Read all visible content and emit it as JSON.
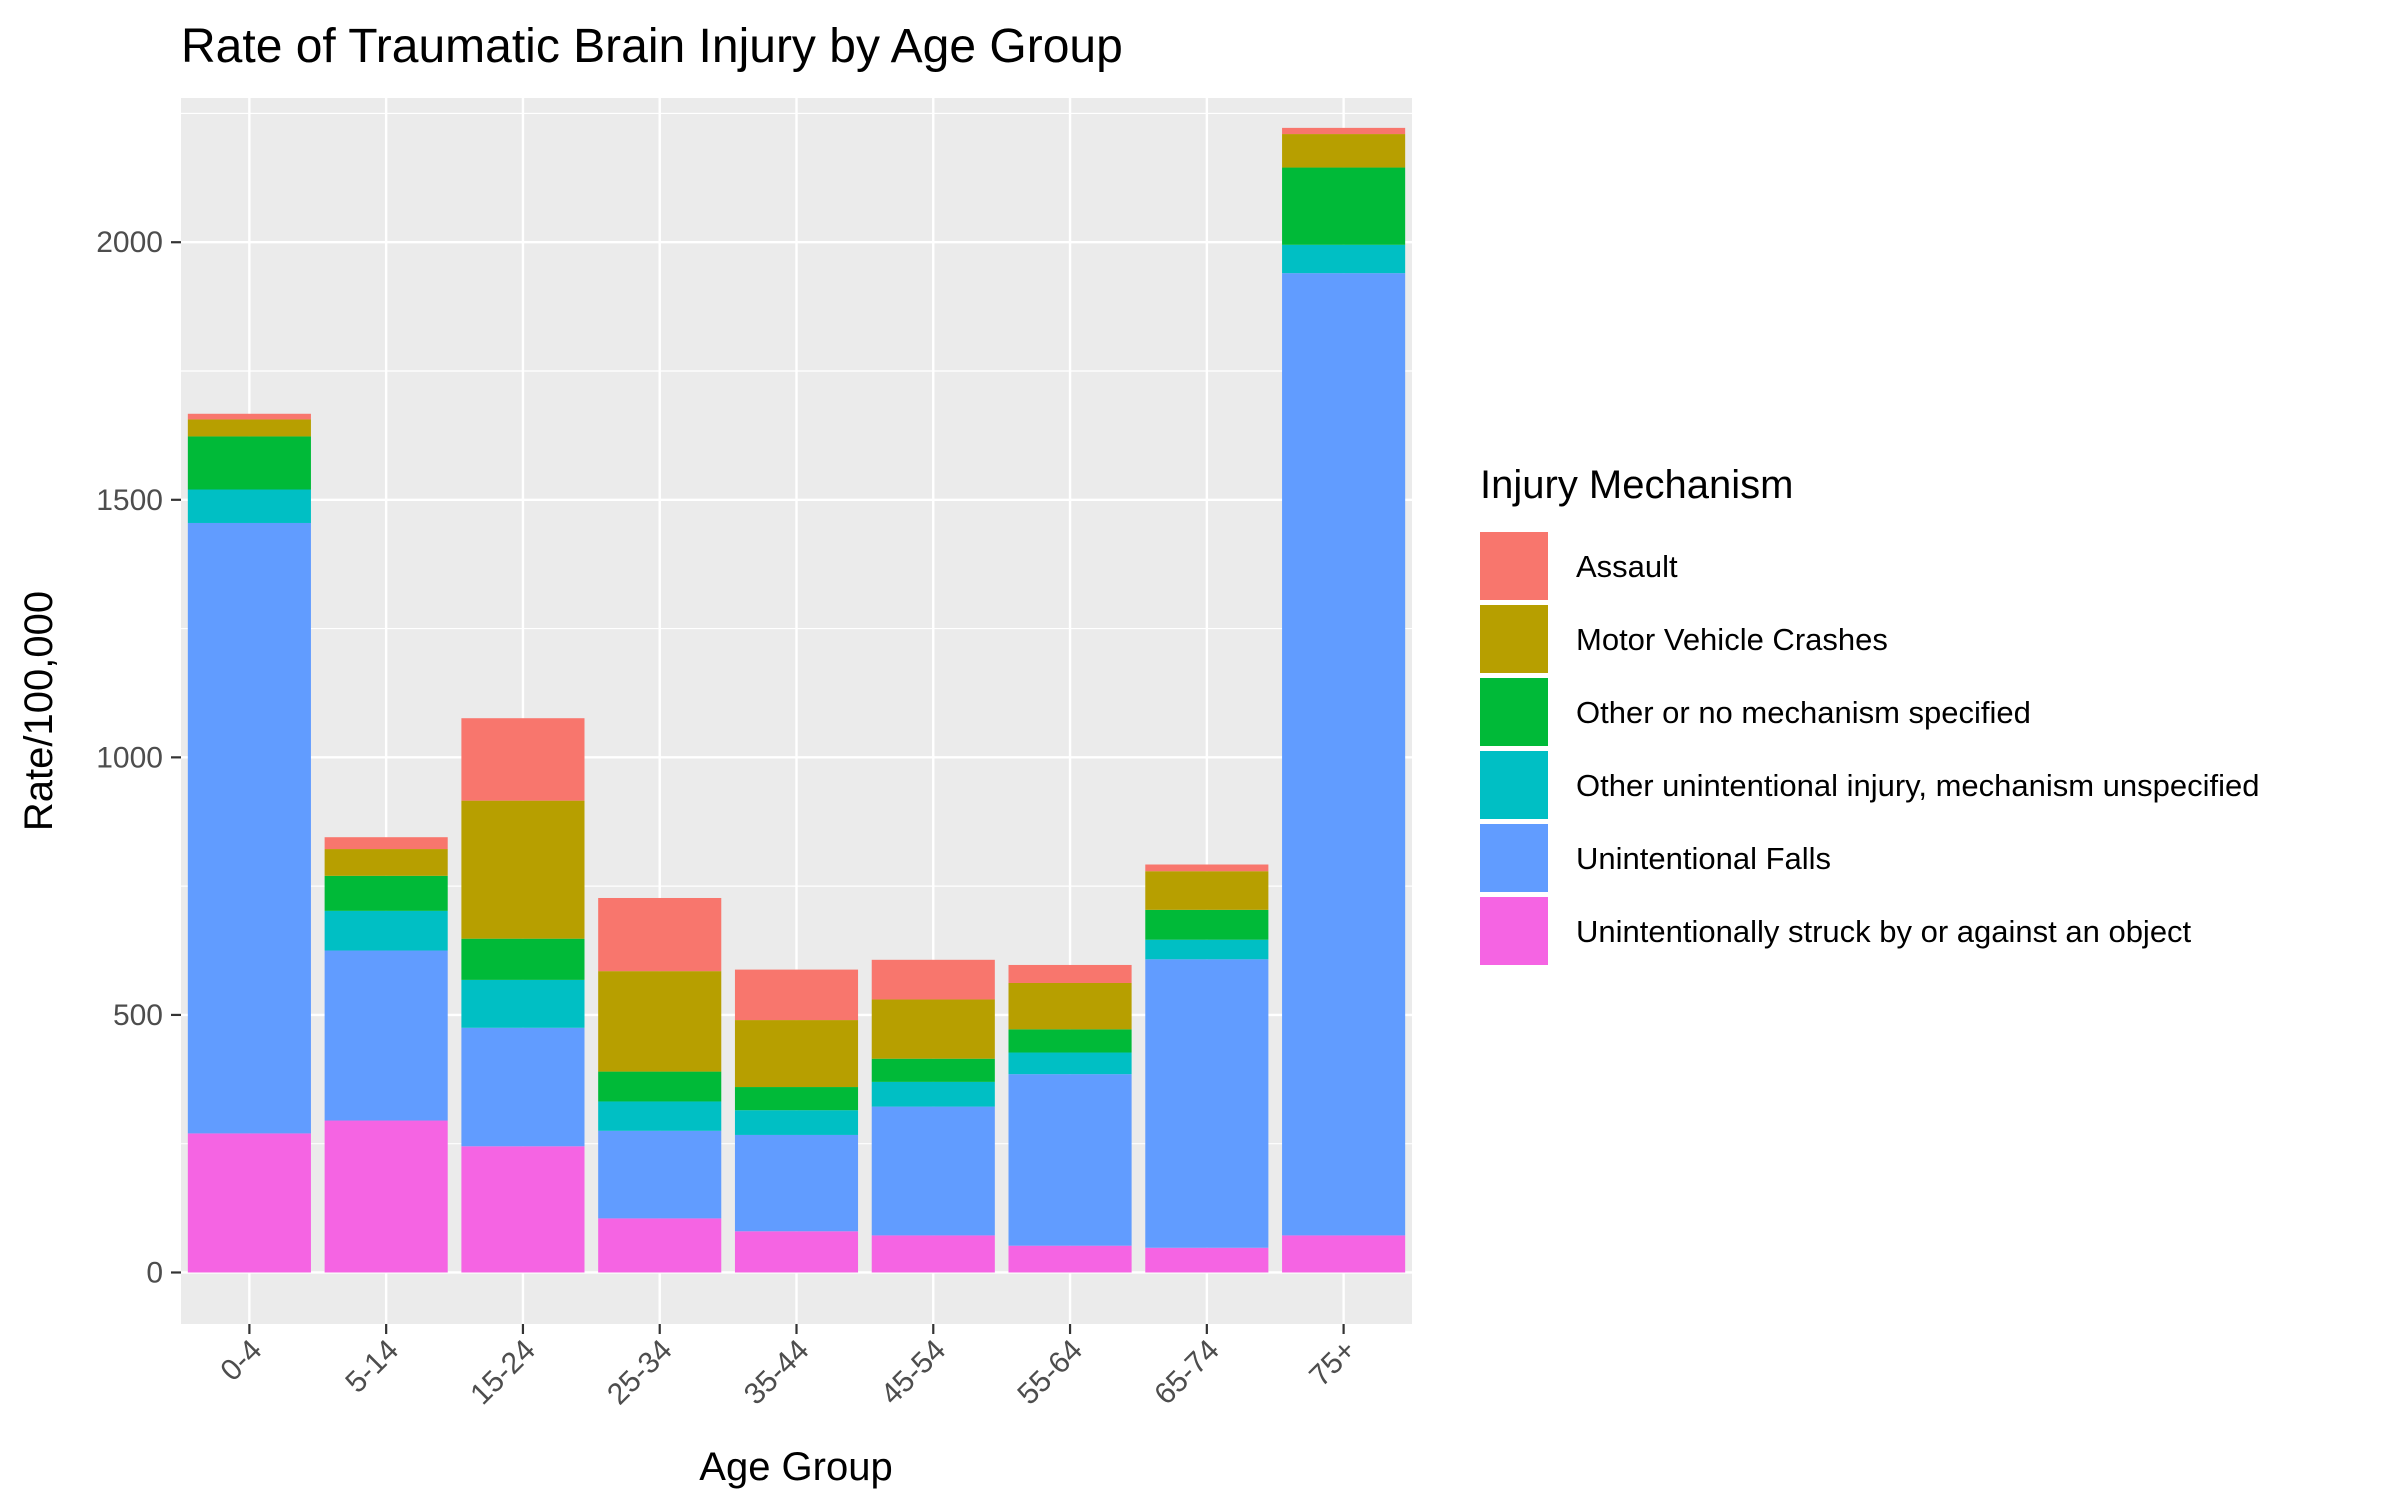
{
  "chart_data": {
    "type": "bar",
    "stacked": true,
    "title": "Rate of Traumatic Brain Injury by Age Group",
    "xlabel": "Age Group",
    "ylabel": "Rate/100,000",
    "ylim": [
      -100,
      2280
    ],
    "yticks": [
      0,
      500,
      1000,
      1500,
      2000
    ],
    "ytick_labels": [
      "0",
      "500",
      "1000",
      "1500",
      "2000"
    ],
    "grid": true,
    "legend_title": "Injury Mechanism",
    "legend_position": "right",
    "categories": [
      "0-4",
      "5-14",
      "15-24",
      "25-34",
      "35-44",
      "45-54",
      "55-64",
      "65-74",
      "75+"
    ],
    "series": [
      {
        "name": "Unintentionally struck by or against an object",
        "color": "#F564E3",
        "values": [
          270,
          295,
          245,
          105,
          80,
          72,
          52,
          48,
          72
        ]
      },
      {
        "name": "Unintentional Falls",
        "color": "#619CFF",
        "values": [
          1185,
          330,
          230,
          170,
          187,
          250,
          333,
          560,
          1868
        ]
      },
      {
        "name": "Other unintentional injury, mechanism unspecified",
        "color": "#00BFC4",
        "values": [
          65,
          77,
          93,
          57,
          48,
          48,
          42,
          38,
          55
        ]
      },
      {
        "name": "Other or no mechanism specified",
        "color": "#00BA38",
        "values": [
          103,
          68,
          80,
          58,
          45,
          45,
          45,
          58,
          150
        ]
      },
      {
        "name": "Motor Vehicle Crashes",
        "color": "#B79F00",
        "values": [
          33,
          52,
          268,
          195,
          130,
          115,
          90,
          75,
          65
        ]
      },
      {
        "name": "Assault",
        "color": "#F8766D",
        "values": [
          11,
          23,
          160,
          142,
          98,
          77,
          35,
          13,
          12
        ]
      }
    ]
  }
}
